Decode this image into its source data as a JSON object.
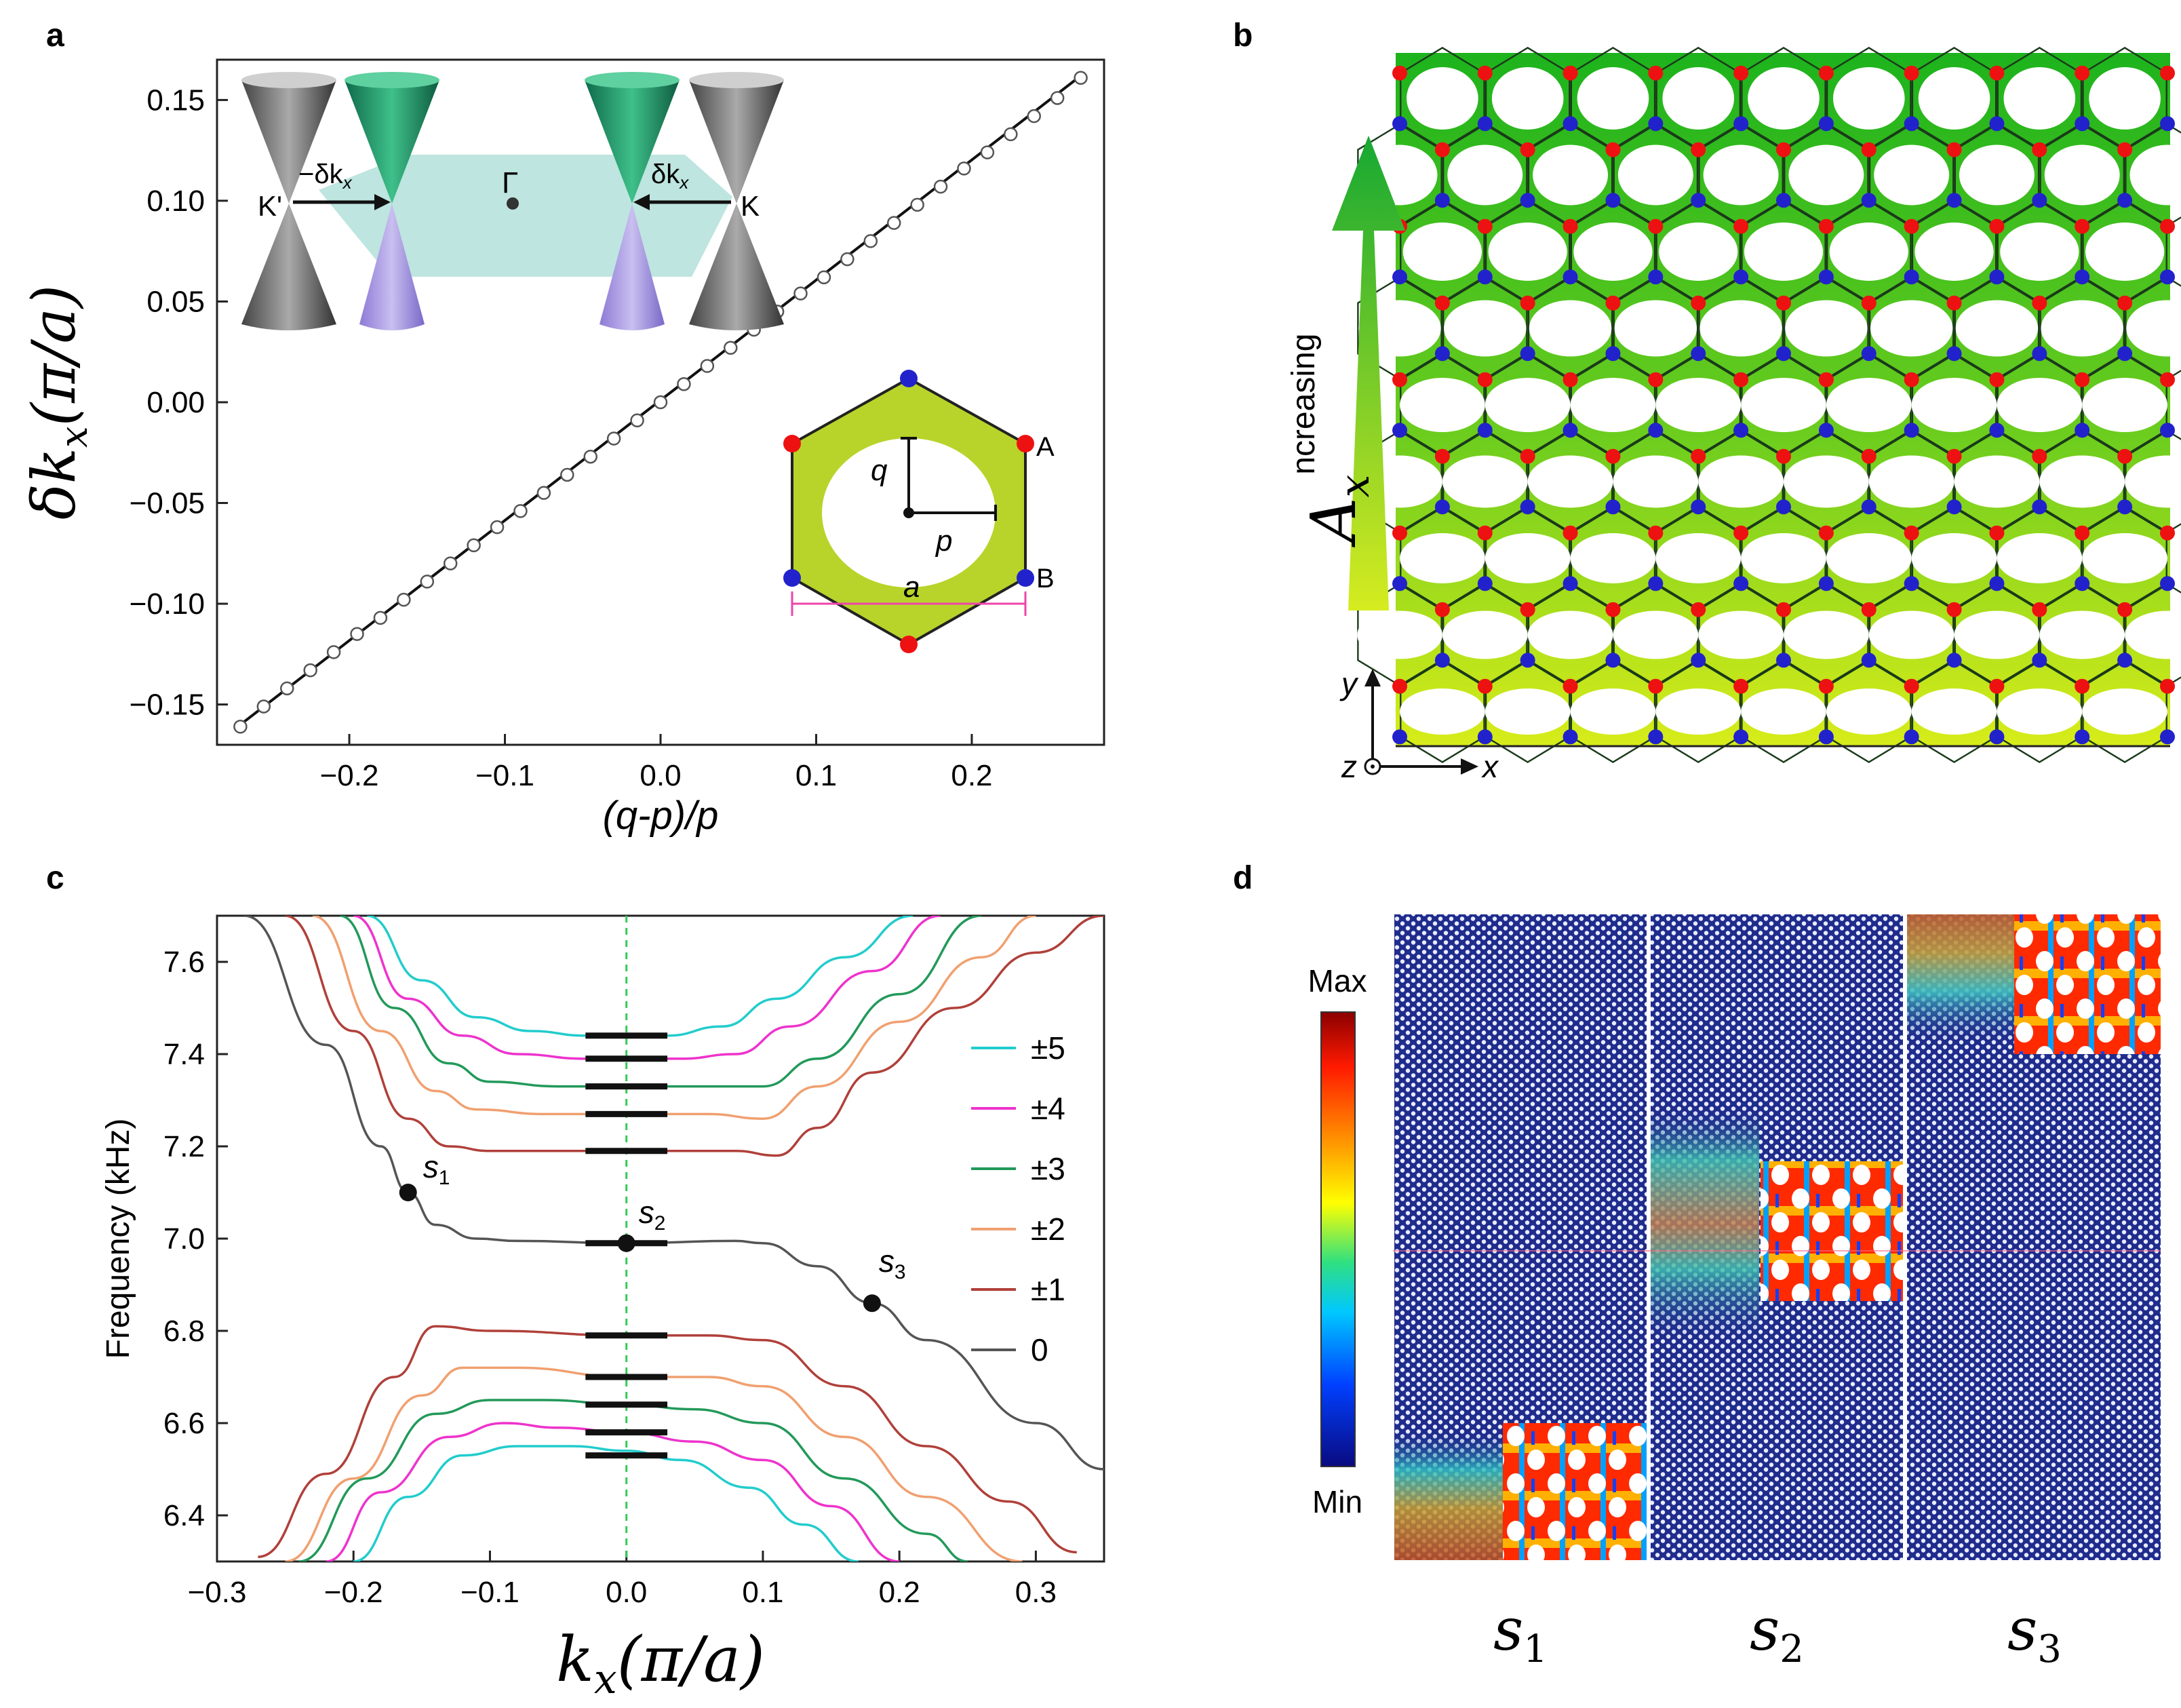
{
  "panels": {
    "a": "a",
    "b": "b",
    "c": "c",
    "d": "d"
  },
  "colors": {
    "gray_line": "#555555",
    "green_dash": "#33cc55",
    "lattice_top": "#1db31d",
    "lattice_bottom": "#d8ec1a",
    "node_a": "#ee1111",
    "node_b": "#2222cc",
    "hex_fill": "#b8d42a"
  },
  "panel_a": {
    "xlabel": "(q-p)/p",
    "ylabel_main": "δk",
    "ylabel_sub": "x",
    "ylabel_tail": "(π/a)",
    "inset_cones": {
      "k_prime": "K'",
      "k": "K",
      "gamma": "Γ",
      "minus_dk": "−δk",
      "dk": "δk",
      "sub_x": "x"
    },
    "inset_cell": {
      "q": "q",
      "p": "p",
      "a": "a",
      "A": "A",
      "B": "B"
    }
  },
  "panel_b": {
    "arrow_label_main": "A",
    "arrow_label_sub": "x",
    "arrow_label_text": "ncreasing",
    "axis_x": "x",
    "axis_y": "y",
    "axis_z": "z"
  },
  "panel_c": {
    "xlabel_main": "k",
    "xlabel_sub": "x",
    "xlabel_tail": "(π/a)",
    "ylabel": "Frequency (kHz)",
    "points": [
      {
        "label": "s",
        "sub": "1"
      },
      {
        "label": "s",
        "sub": "2"
      },
      {
        "label": "s",
        "sub": "3"
      }
    ]
  },
  "panel_d": {
    "colorbar_max": "Max",
    "colorbar_min": "Min",
    "labels": [
      {
        "main": "s",
        "sub": "1"
      },
      {
        "main": "s",
        "sub": "2"
      },
      {
        "main": "s",
        "sub": "3"
      }
    ]
  },
  "chart_data": [
    {
      "type": "scatter",
      "panel": "a",
      "title": "",
      "xlabel": "(q-p)/p",
      "ylabel": "δk_x(π/a)",
      "xlim": [
        -0.285,
        0.285
      ],
      "ylim": [
        -0.17,
        0.17
      ],
      "xticks": [
        -0.2,
        -0.1,
        0.0,
        0.1,
        0.2
      ],
      "xtick_labels": [
        "−0.2",
        "−0.1",
        "0.0",
        "0.1",
        "0.2"
      ],
      "yticks": [
        -0.15,
        -0.1,
        -0.05,
        0.0,
        0.05,
        0.1,
        0.15
      ],
      "ytick_labels": [
        "−0.15",
        "−0.10",
        "−0.05",
        "0.00",
        "0.05",
        "0.10",
        "0.15"
      ],
      "fit_line": {
        "x": [
          -0.27,
          0.27
        ],
        "y": [
          -0.16,
          0.162
        ]
      },
      "x": [
        -0.27,
        -0.255,
        -0.24,
        -0.225,
        -0.21,
        -0.195,
        -0.18,
        -0.165,
        -0.15,
        -0.135,
        -0.12,
        -0.105,
        -0.09,
        -0.075,
        -0.06,
        -0.045,
        -0.03,
        -0.015,
        0.0,
        0.015,
        0.03,
        0.045,
        0.06,
        0.075,
        0.09,
        0.105,
        0.12,
        0.135,
        0.15,
        0.165,
        0.18,
        0.195,
        0.21,
        0.225,
        0.24,
        0.255,
        0.27
      ],
      "y": [
        -0.161,
        -0.151,
        -0.142,
        -0.133,
        -0.124,
        -0.115,
        -0.107,
        -0.098,
        -0.089,
        -0.08,
        -0.071,
        -0.062,
        -0.054,
        -0.045,
        -0.036,
        -0.027,
        -0.018,
        -0.009,
        0.0,
        0.009,
        0.018,
        0.027,
        0.036,
        0.045,
        0.054,
        0.062,
        0.071,
        0.08,
        0.089,
        0.098,
        0.107,
        0.116,
        0.124,
        0.133,
        0.142,
        0.151,
        0.161
      ]
    },
    {
      "type": "line",
      "panel": "c",
      "title": "",
      "xlabel": "k_x(π/a)",
      "ylabel": "Frequency (kHz)",
      "xlim": [
        -0.3,
        0.35
      ],
      "ylim": [
        6.3,
        7.7
      ],
      "xticks": [
        -0.3,
        -0.2,
        -0.1,
        0.0,
        0.1,
        0.2,
        0.3
      ],
      "xtick_labels": [
        "−0.3",
        "−0.2",
        "−0.1",
        "0.0",
        "0.1",
        "0.2",
        "0.3"
      ],
      "yticks": [
        6.4,
        6.6,
        6.8,
        7.0,
        7.2,
        7.4,
        7.6
      ],
      "ytick_labels": [
        "6.4",
        "6.6",
        "6.8",
        "7.0",
        "7.2",
        "7.4",
        "7.6"
      ],
      "legend": [
        {
          "label": "±5",
          "color": "#22cccc"
        },
        {
          "label": "±4",
          "color": "#ee33cc"
        },
        {
          "label": "±3",
          "color": "#22995a"
        },
        {
          "label": "±2",
          "color": "#f0a070"
        },
        {
          "label": "±1",
          "color": "#b0403a"
        },
        {
          "label": "0",
          "color": "#555555"
        }
      ],
      "series": [
        {
          "name": "0",
          "color": "#555555",
          "x": [
            -0.28,
            -0.22,
            -0.18,
            -0.16,
            -0.14,
            -0.11,
            -0.08,
            0.0,
            0.08,
            0.1,
            0.14,
            0.18,
            0.22,
            0.3,
            0.35
          ],
          "y": [
            7.7,
            7.42,
            7.2,
            7.1,
            7.03,
            7.0,
            6.995,
            6.99,
            6.995,
            6.99,
            6.94,
            6.86,
            6.78,
            6.6,
            6.5
          ]
        },
        {
          "name": "+1",
          "color": "#b0403a",
          "x": [
            -0.25,
            -0.2,
            -0.16,
            -0.13,
            -0.1,
            0.0,
            0.08,
            0.11,
            0.14,
            0.18,
            0.24,
            0.3,
            0.35
          ],
          "y": [
            7.7,
            7.45,
            7.26,
            7.2,
            7.19,
            7.19,
            7.19,
            7.18,
            7.24,
            7.36,
            7.5,
            7.62,
            7.7
          ]
        },
        {
          "name": "-1",
          "color": "#b0403a",
          "x": [
            -0.27,
            -0.22,
            -0.17,
            -0.14,
            -0.1,
            0.0,
            0.06,
            0.1,
            0.16,
            0.22,
            0.28,
            0.33
          ],
          "y": [
            6.31,
            6.49,
            6.7,
            6.81,
            6.8,
            6.79,
            6.79,
            6.78,
            6.68,
            6.55,
            6.43,
            6.32
          ]
        },
        {
          "name": "+2",
          "color": "#f0a070",
          "x": [
            -0.23,
            -0.18,
            -0.14,
            -0.11,
            -0.06,
            0.0,
            0.06,
            0.1,
            0.14,
            0.2,
            0.26,
            0.3
          ],
          "y": [
            7.7,
            7.45,
            7.32,
            7.28,
            7.27,
            7.27,
            7.27,
            7.26,
            7.33,
            7.47,
            7.61,
            7.7
          ]
        },
        {
          "name": "-2",
          "color": "#f0a070",
          "x": [
            -0.25,
            -0.2,
            -0.15,
            -0.12,
            -0.08,
            0.0,
            0.06,
            0.1,
            0.16,
            0.22,
            0.29
          ],
          "y": [
            6.3,
            6.48,
            6.66,
            6.72,
            6.72,
            6.7,
            6.7,
            6.68,
            6.57,
            6.44,
            6.3
          ]
        },
        {
          "name": "+3",
          "color": "#22995a",
          "x": [
            -0.21,
            -0.17,
            -0.13,
            -0.1,
            -0.05,
            0.0,
            0.06,
            0.1,
            0.14,
            0.2,
            0.26
          ],
          "y": [
            7.7,
            7.5,
            7.38,
            7.34,
            7.33,
            7.33,
            7.33,
            7.33,
            7.39,
            7.53,
            7.7
          ]
        },
        {
          "name": "-3",
          "color": "#22995a",
          "x": [
            -0.24,
            -0.19,
            -0.14,
            -0.1,
            -0.06,
            0.0,
            0.05,
            0.1,
            0.16,
            0.22,
            0.25
          ],
          "y": [
            6.3,
            6.48,
            6.62,
            6.65,
            6.65,
            6.64,
            6.63,
            6.6,
            6.48,
            6.36,
            6.3
          ]
        },
        {
          "name": "+4",
          "color": "#ee33cc",
          "x": [
            -0.2,
            -0.16,
            -0.12,
            -0.08,
            -0.03,
            0.0,
            0.04,
            0.08,
            0.12,
            0.18,
            0.23
          ],
          "y": [
            7.7,
            7.52,
            7.44,
            7.4,
            7.39,
            7.39,
            7.39,
            7.4,
            7.46,
            7.58,
            7.7
          ]
        },
        {
          "name": "-4",
          "color": "#ee33cc",
          "x": [
            -0.22,
            -0.18,
            -0.13,
            -0.09,
            -0.05,
            0.0,
            0.05,
            0.1,
            0.15,
            0.2
          ],
          "y": [
            6.3,
            6.45,
            6.57,
            6.6,
            6.59,
            6.58,
            6.56,
            6.52,
            6.42,
            6.3
          ]
        },
        {
          "name": "+5",
          "color": "#22cccc",
          "x": [
            -0.19,
            -0.15,
            -0.11,
            -0.07,
            -0.03,
            0.0,
            0.03,
            0.07,
            0.11,
            0.16,
            0.21
          ],
          "y": [
            7.7,
            7.56,
            7.48,
            7.45,
            7.44,
            7.44,
            7.44,
            7.46,
            7.52,
            7.61,
            7.7
          ]
        },
        {
          "name": "-5",
          "color": "#22cccc",
          "x": [
            -0.2,
            -0.16,
            -0.12,
            -0.08,
            -0.04,
            0.0,
            0.04,
            0.09,
            0.13,
            0.17
          ],
          "y": [
            6.3,
            6.44,
            6.53,
            6.55,
            6.55,
            6.54,
            6.52,
            6.46,
            6.38,
            6.3
          ]
        }
      ],
      "bars_y": [
        7.44,
        7.39,
        7.33,
        7.27,
        7.19,
        6.99,
        6.79,
        6.7,
        6.64,
        6.58,
        6.53
      ],
      "bars_x_range": [
        -0.03,
        0.03
      ],
      "dashed_vline_x": 0.0,
      "marked_points": [
        {
          "label": "s1",
          "x": -0.16,
          "y": 7.1
        },
        {
          "label": "s2",
          "x": 0.0,
          "y": 6.99
        },
        {
          "label": "s3",
          "x": 0.18,
          "y": 6.86
        }
      ]
    }
  ]
}
